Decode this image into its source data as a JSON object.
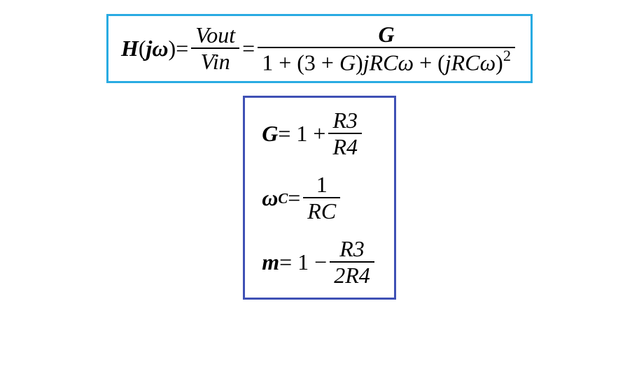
{
  "box1": {
    "border_color": "#29abe2",
    "lhs_H": "H",
    "lhs_open": "(",
    "lhs_j": "j",
    "lhs_omega": "ω",
    "lhs_close": ")",
    "eq": " = ",
    "frac1_num": "Vout",
    "frac1_den": "Vin",
    "eq2": " = ",
    "frac2_num_bold": "G",
    "frac2_den_1": "1 + ",
    "frac2_den_open": "(",
    "frac2_den_3plus": "3 + ",
    "frac2_den_G": "G",
    "frac2_den_close": ")",
    "frac2_den_jRComega": "jRCω",
    "frac2_den_plus": " + ",
    "frac2_den_open2": "(",
    "frac2_den_jRComega2": "jRCω",
    "frac2_den_close2": ")",
    "frac2_den_sq": "2"
  },
  "box2": {
    "border_color": "#3f51b5",
    "line1_G": "G",
    "line1_eq": " = 1 + ",
    "line1_num": "R3",
    "line1_den": "R4",
    "line2_omega": "ω",
    "line2_sub": "C",
    "line2_eq": " = ",
    "line2_num": "1",
    "line2_den": "RC",
    "line3_m": "m",
    "line3_eq": " = 1 − ",
    "line3_num": "R3",
    "line3_den": "2R4"
  }
}
